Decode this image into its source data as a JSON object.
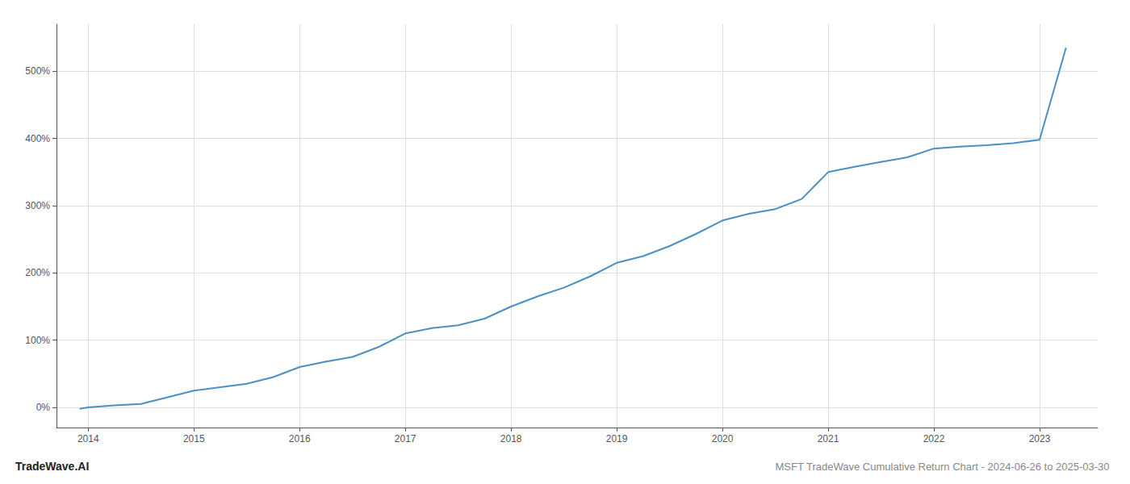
{
  "chart_data": {
    "type": "line",
    "title": "MSFT TradeWave Cumulative Return Chart - 2024-06-26 to 2025-03-30",
    "annotations": [
      "TradeWave.AI"
    ],
    "x": [
      2013.92,
      2014.0,
      2014.25,
      2014.5,
      2014.75,
      2015.0,
      2015.25,
      2015.5,
      2015.75,
      2016.0,
      2016.25,
      2016.5,
      2016.75,
      2017.0,
      2017.25,
      2017.5,
      2017.75,
      2018.0,
      2018.25,
      2018.5,
      2018.75,
      2019.0,
      2019.25,
      2019.5,
      2019.75,
      2020.0,
      2020.25,
      2020.5,
      2020.75,
      2021.0,
      2021.25,
      2021.5,
      2021.75,
      2022.0,
      2022.25,
      2022.5,
      2022.75,
      2023.0,
      2023.25
    ],
    "values": [
      -2,
      0,
      3,
      5,
      15,
      25,
      30,
      35,
      45,
      60,
      68,
      75,
      90,
      110,
      118,
      122,
      132,
      150,
      165,
      178,
      195,
      215,
      225,
      240,
      258,
      278,
      288,
      295,
      310,
      350,
      358,
      365,
      372,
      385,
      388,
      390,
      393,
      398,
      535
    ],
    "color": "#4a90c4",
    "xlim": [
      2013.7,
      2023.55
    ],
    "xticks": [
      2014,
      2015,
      2016,
      2017,
      2018,
      2019,
      2020,
      2021,
      2022,
      2023
    ],
    "ylim": [
      -30,
      570
    ],
    "yticks": [
      {
        "value": 0,
        "label": "0%"
      },
      {
        "value": 100,
        "label": "100%"
      },
      {
        "value": 200,
        "label": "200%"
      },
      {
        "value": 300,
        "label": "300%"
      },
      {
        "value": 400,
        "label": "400%"
      },
      {
        "value": 500,
        "label": "500%"
      }
    ],
    "grid": true
  }
}
